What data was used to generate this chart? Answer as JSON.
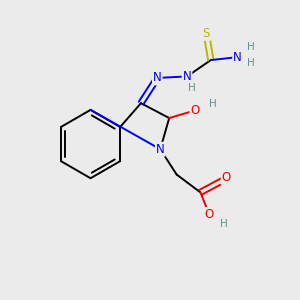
{
  "bg_color": "#ebebeb",
  "atom_colors": {
    "C": "#000000",
    "N": "#0000ee",
    "O": "#ee0000",
    "S": "#b8b800",
    "H": "#5f9090"
  },
  "figsize": [
    3.0,
    3.0
  ],
  "dpi": 100
}
